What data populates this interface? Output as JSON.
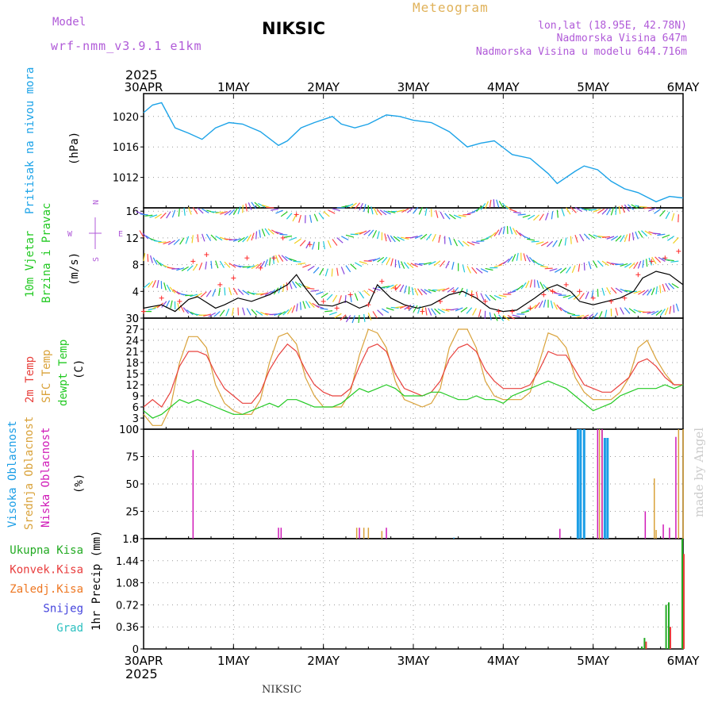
{
  "header": {
    "model_label": "Model",
    "model_name": "wrf-nmm_v3.9.1 e1km",
    "station": "NIKSIC",
    "meteogram": "Meteogram",
    "lonlat": "lon,lat (18.95E, 42.78N)",
    "altitude": "Nadmorska Visina 647m",
    "model_altitude": "Nadmorska Visina u modelu 644.716m",
    "footer_station": "NIKSIC",
    "credit": "made by Angel"
  },
  "colors": {
    "pressure": "#1ca3e8",
    "temp2m": "#e8403c",
    "sfc_temp": "#d9a23a",
    "dewpoint": "#22c922",
    "wind_speed": "#000000",
    "gust_marker": "#ff2a2a",
    "high_cloud": "#1c9ee6",
    "mid_cloud": "#d9a23a",
    "low_cloud": "#d01ab8",
    "total_precip": "#22aa22",
    "conv_precip": "#e83c3c",
    "snow": "#4444dd",
    "hail": "#2cc0c0"
  },
  "chart_data": {
    "type": "line",
    "x_axis": {
      "top_year": "2025",
      "bottom_year": "2025",
      "ticks": [
        "30APR",
        "1MAY",
        "2MAY",
        "3MAY",
        "4MAY",
        "5MAY",
        "6MAY"
      ]
    },
    "panels": [
      {
        "id": "pressure",
        "ylabel_left": [
          "Pritisak na nivou mora"
        ],
        "unit": "(hPa)",
        "ylim": [
          1008,
          1023
        ],
        "yticks": [
          "1020",
          "1016",
          "1012"
        ],
        "series": [
          {
            "x": [
              0.0,
              0.1,
              0.2,
              0.35,
              0.5,
              0.65,
              0.8,
              0.95,
              1.1,
              1.3,
              1.5,
              1.6,
              1.75,
              1.9,
              2.1,
              2.2,
              2.35,
              2.5,
              2.7,
              2.85,
              3.0,
              3.2,
              3.4,
              3.6,
              3.75,
              3.9,
              4.1,
              4.3,
              4.5,
              4.6,
              4.8,
              4.9,
              5.05,
              5.2,
              5.35,
              5.5,
              5.7,
              5.85,
              6.0
            ],
            "values": [
              1020.5,
              1021.5,
              1021.8,
              1018.5,
              1017.8,
              1017.0,
              1018.5,
              1019.2,
              1019.0,
              1018.0,
              1016.2,
              1016.8,
              1018.5,
              1019.2,
              1020.0,
              1019.0,
              1018.5,
              1019.0,
              1020.2,
              1020.0,
              1019.5,
              1019.2,
              1018.0,
              1016.0,
              1016.5,
              1016.8,
              1015.0,
              1014.5,
              1012.5,
              1011.2,
              1012.8,
              1013.5,
              1013.0,
              1011.5,
              1010.5,
              1010.0,
              1008.8,
              1009.5,
              1009.3
            ]
          }
        ]
      },
      {
        "id": "wind",
        "ylabel_left": [
          "10m Vjetar",
          "Brzina i Pravac"
        ],
        "unit": "(m/s)",
        "compass": [
          "N",
          "W",
          "E",
          "S"
        ],
        "ylim": [
          0,
          16.5
        ],
        "yticks": [
          "16",
          "12",
          "8",
          "4",
          "0"
        ],
        "series": [
          {
            "name": "speed",
            "x": [
              0.0,
              0.2,
              0.35,
              0.5,
              0.6,
              0.8,
              0.9,
              1.05,
              1.2,
              1.4,
              1.6,
              1.7,
              1.8,
              1.95,
              2.1,
              2.25,
              2.4,
              2.5,
              2.6,
              2.75,
              2.9,
              3.05,
              3.2,
              3.4,
              3.55,
              3.7,
              3.85,
              4.0,
              4.15,
              4.35,
              4.5,
              4.6,
              4.75,
              4.85,
              5.0,
              5.15,
              5.3,
              5.45,
              5.55,
              5.7,
              5.85,
              6.0
            ],
            "values": [
              1.5,
              2.0,
              1.0,
              2.8,
              3.2,
              1.5,
              2.0,
              3.0,
              2.5,
              3.5,
              5.0,
              6.5,
              4.5,
              2.0,
              1.8,
              2.5,
              1.5,
              2.0,
              5.0,
              3.0,
              2.0,
              1.5,
              2.0,
              3.5,
              4.0,
              3.0,
              1.5,
              1.0,
              1.2,
              3.0,
              4.5,
              5.0,
              4.0,
              2.5,
              2.0,
              2.5,
              3.0,
              4.0,
              6.0,
              7.0,
              6.5,
              5.0
            ]
          },
          {
            "name": "gust",
            "x": [
              0.0,
              0.2,
              0.4,
              0.55,
              0.7,
              0.85,
              1.0,
              1.15,
              1.3,
              1.45,
              1.55,
              1.7,
              1.85,
              2.0,
              2.15,
              2.3,
              2.5,
              2.65,
              2.8,
              2.95,
              3.1,
              3.3,
              3.45,
              3.65,
              3.8,
              3.95,
              4.1,
              4.3,
              4.45,
              4.55,
              4.7,
              4.85,
              5.0,
              5.2,
              5.35,
              5.5,
              5.65,
              5.8,
              5.95
            ],
            "values": [
              1.0,
              3.0,
              2.5,
              8.5,
              9.5,
              5.0,
              6.0,
              9.0,
              7.5,
              9.0,
              12.0,
              15.5,
              11.0,
              2.5,
              1.5,
              3.5,
              2.0,
              5.5,
              4.5,
              1.5,
              1.0,
              2.5,
              4.0,
              3.5,
              2.5,
              1.0,
              1.0,
              1.5,
              3.5,
              4.0,
              5.0,
              4.0,
              3.0,
              2.5,
              3.0,
              6.5,
              8.5,
              9.0,
              10.0
            ]
          }
        ]
      },
      {
        "id": "temperature",
        "ylabel_left": [
          "2m Temp",
          "SFC Temp",
          "dewpt Temp"
        ],
        "unit": "(C)",
        "ylim": [
          0,
          30
        ],
        "yticks": [
          "30",
          "27",
          "24",
          "21",
          "18",
          "15",
          "12",
          "9",
          "6",
          "3",
          "0"
        ],
        "series": [
          {
            "name": "2m Temp",
            "x": [
              0.0,
              0.1,
              0.2,
              0.3,
              0.4,
              0.5,
              0.6,
              0.7,
              0.8,
              0.9,
              1.0,
              1.1,
              1.2,
              1.3,
              1.4,
              1.5,
              1.6,
              1.7,
              1.8,
              1.9,
              2.0,
              2.1,
              2.2,
              2.3,
              2.4,
              2.5,
              2.6,
              2.7,
              2.8,
              2.9,
              3.0,
              3.1,
              3.2,
              3.3,
              3.4,
              3.5,
              3.6,
              3.7,
              3.8,
              3.9,
              4.0,
              4.1,
              4.2,
              4.3,
              4.4,
              4.5,
              4.6,
              4.7,
              4.8,
              4.9,
              5.0,
              5.1,
              5.2,
              5.3,
              5.4,
              5.5,
              5.6,
              5.7,
              5.8,
              5.9,
              6.0
            ],
            "values": [
              6,
              8,
              6,
              10,
              17,
              21,
              21,
              20,
              15,
              11,
              9,
              7,
              7,
              10,
              16,
              20,
              23,
              21,
              16,
              12,
              10,
              9,
              9,
              11,
              17,
              22,
              23,
              21,
              15,
              11,
              10,
              9,
              10,
              13,
              19,
              22,
              23,
              21,
              16,
              13,
              11,
              11,
              11,
              12,
              16,
              21,
              20,
              20,
              16,
              12,
              11,
              10,
              10,
              12,
              14,
              18,
              19,
              17,
              14,
              12,
              12
            ]
          },
          {
            "name": "SFC Temp",
            "x": [
              0.0,
              0.1,
              0.2,
              0.3,
              0.4,
              0.5,
              0.6,
              0.7,
              0.8,
              0.9,
              1.0,
              1.1,
              1.2,
              1.3,
              1.4,
              1.5,
              1.6,
              1.7,
              1.8,
              1.9,
              2.0,
              2.1,
              2.2,
              2.3,
              2.4,
              2.5,
              2.6,
              2.7,
              2.8,
              2.9,
              3.0,
              3.1,
              3.2,
              3.3,
              3.4,
              3.5,
              3.6,
              3.7,
              3.8,
              3.9,
              4.0,
              4.1,
              4.2,
              4.3,
              4.4,
              4.5,
              4.6,
              4.7,
              4.8,
              4.9,
              5.0,
              5.1,
              5.2,
              5.3,
              5.4,
              5.5,
              5.6,
              5.7,
              5.8,
              5.9,
              6.0
            ],
            "values": [
              4,
              1,
              1,
              6,
              18,
              25,
              25,
              22,
              12,
              7,
              5,
              4,
              4,
              8,
              18,
              25,
              26,
              23,
              14,
              9,
              6,
              6,
              6,
              10,
              20,
              27,
              26,
              22,
              13,
              8,
              7,
              6,
              7,
              11,
              22,
              27,
              27,
              22,
              13,
              9,
              8,
              8,
              8,
              10,
              18,
              26,
              25,
              22,
              14,
              10,
              8,
              8,
              8,
              10,
              14,
              22,
              24,
              19,
              15,
              12,
              12
            ]
          },
          {
            "name": "dewpt Temp",
            "x": [
              0.0,
              0.1,
              0.2,
              0.3,
              0.4,
              0.5,
              0.6,
              0.7,
              0.8,
              0.9,
              1.0,
              1.1,
              1.2,
              1.3,
              1.4,
              1.5,
              1.6,
              1.7,
              1.8,
              1.9,
              2.0,
              2.1,
              2.2,
              2.3,
              2.4,
              2.5,
              2.6,
              2.7,
              2.8,
              2.9,
              3.0,
              3.1,
              3.2,
              3.3,
              3.4,
              3.5,
              3.6,
              3.7,
              3.8,
              3.9,
              4.0,
              4.1,
              4.2,
              4.3,
              4.4,
              4.5,
              4.6,
              4.7,
              4.8,
              4.9,
              5.0,
              5.1,
              5.2,
              5.3,
              5.4,
              5.5,
              5.6,
              5.7,
              5.8,
              5.9,
              6.0
            ],
            "values": [
              5,
              3,
              4,
              6,
              8,
              7,
              8,
              7,
              6,
              5,
              4,
              4,
              5,
              6,
              7,
              6,
              8,
              8,
              7,
              6,
              6,
              6,
              7,
              9,
              11,
              10,
              11,
              12,
              11,
              9,
              9,
              9,
              10,
              10,
              9,
              8,
              8,
              9,
              8,
              8,
              7,
              9,
              10,
              11,
              12,
              13,
              12,
              11,
              9,
              7,
              5,
              6,
              7,
              9,
              10,
              11,
              11,
              11,
              12,
              11,
              12
            ]
          }
        ]
      },
      {
        "id": "cloud",
        "ylabel_left": [
          "Visoka Oblacnost",
          "Srednja Oblacnost",
          "Niska Oblacnost"
        ],
        "unit": "(%)",
        "ylim": [
          0,
          100
        ],
        "yticks": [
          "100",
          "75",
          "50",
          "25",
          "0"
        ],
        "series": [
          {
            "name": "Visoka Oblacnost",
            "x": [
              3.45,
              4.83,
              4.86,
              4.9,
              5.13,
              5.16
            ],
            "values": [
              1,
              100,
              100,
              100,
              92,
              92
            ]
          },
          {
            "name": "Srednja Oblacnost",
            "x": [
              2.37,
              2.45,
              2.5,
              2.65,
              5.07,
              5.1,
              5.68,
              5.7,
              5.95,
              6.0
            ],
            "values": [
              10,
              10,
              10,
              7,
              100,
              100,
              55,
              8,
              100,
              100
            ]
          },
          {
            "name": "Niska Oblacnost",
            "x": [
              0.55,
              1.5,
              1.53,
              2.4,
              2.7,
              4.63,
              5.05,
              5.1,
              5.58,
              5.78,
              5.85,
              5.92
            ],
            "values": [
              81,
              10,
              10,
              10,
              10,
              9,
              100,
              100,
              25,
              13,
              10,
              93
            ]
          }
        ]
      },
      {
        "id": "precip",
        "ylabel_left": [
          "Ukupna Kisa",
          "Konvek.Kisa",
          "Zaledj.Kisa",
          "Snijeg",
          "Grad"
        ],
        "unit": "1hr Precip (mm)",
        "ylim": [
          0,
          1.8
        ],
        "yticks": [
          "1.8",
          "1.44",
          "1.08",
          "0.72",
          "0.36",
          "0"
        ],
        "series": [
          {
            "name": "Ukupna Kisa",
            "x": [
              5.55,
              5.58,
              5.82,
              5.85,
              6.0
            ],
            "values": [
              0.04,
              0.18,
              0.72,
              0.76,
              1.8
            ]
          },
          {
            "name": "Konvek.Kisa",
            "x": [
              5.58,
              5.85,
              6.0
            ],
            "values": [
              0.12,
              0.36,
              1.55
            ]
          }
        ]
      }
    ]
  }
}
